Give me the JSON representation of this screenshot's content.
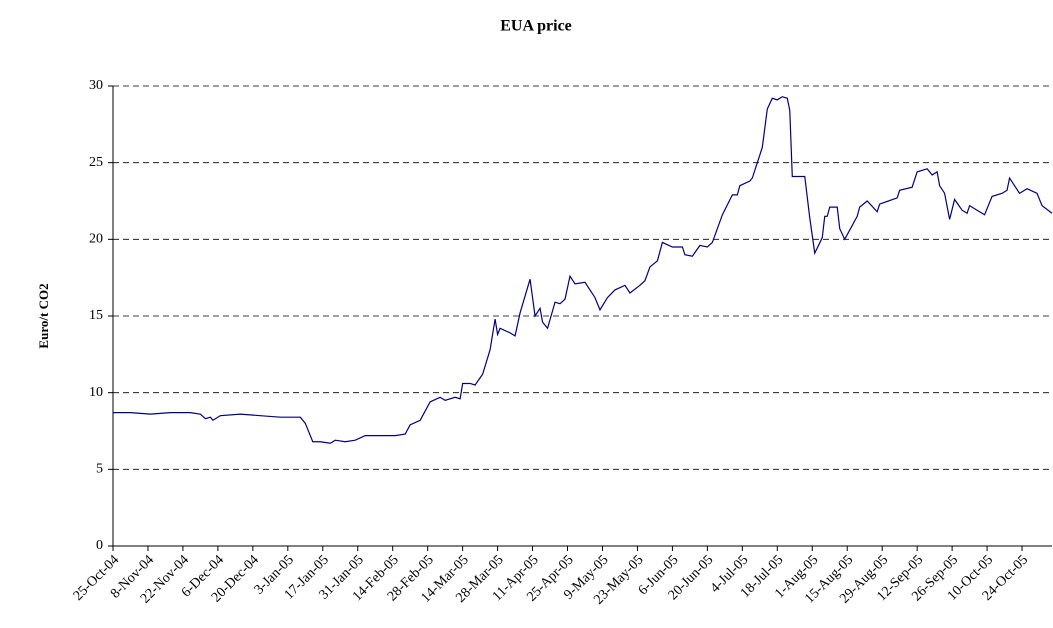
{
  "chart_data": {
    "type": "line",
    "title": "EUA price",
    "ylabel": "Euro/t CO2",
    "color": "#000080",
    "grid": true,
    "xlim": [
      "2004-10-25",
      "2005-11-05"
    ],
    "xticks": [
      {
        "value": "2004-10-25",
        "label": "25-Oct-04"
      },
      {
        "value": "2004-11-08",
        "label": "8-Nov-04"
      },
      {
        "value": "2004-11-22",
        "label": "22-Nov-04"
      },
      {
        "value": "2004-12-06",
        "label": "6-Dec-04"
      },
      {
        "value": "2004-12-20",
        "label": "20-Dec-04"
      },
      {
        "value": "2005-01-03",
        "label": "3-Jan-05"
      },
      {
        "value": "2005-01-17",
        "label": "17-Jan-05"
      },
      {
        "value": "2005-01-31",
        "label": "31-Jan-05"
      },
      {
        "value": "2005-02-14",
        "label": "14-Feb-05"
      },
      {
        "value": "2005-02-28",
        "label": "28-Feb-05"
      },
      {
        "value": "2005-03-14",
        "label": "14-Mar-05"
      },
      {
        "value": "2005-03-28",
        "label": "28-Mar-05"
      },
      {
        "value": "2005-04-11",
        "label": "11-Apr-05"
      },
      {
        "value": "2005-04-25",
        "label": "25-Apr-05"
      },
      {
        "value": "2005-05-09",
        "label": "9-May-05"
      },
      {
        "value": "2005-05-23",
        "label": "23-May-05"
      },
      {
        "value": "2005-06-06",
        "label": "6-Jun-05"
      },
      {
        "value": "2005-06-20",
        "label": "20-Jun-05"
      },
      {
        "value": "2005-07-04",
        "label": "4-Jul-05"
      },
      {
        "value": "2005-07-18",
        "label": "18-Jul-05"
      },
      {
        "value": "2005-08-01",
        "label": "1-Aug-05"
      },
      {
        "value": "2005-08-15",
        "label": "15-Aug-05"
      },
      {
        "value": "2005-08-29",
        "label": "29-Aug-05"
      },
      {
        "value": "2005-09-12",
        "label": "12-Sep-05"
      },
      {
        "value": "2005-09-26",
        "label": "26-Sep-05"
      },
      {
        "value": "2005-10-10",
        "label": "10-Oct-05"
      },
      {
        "value": "2005-10-24",
        "label": "24-Oct-05"
      }
    ],
    "ylim": [
      0,
      30
    ],
    "yticks": [
      0,
      5,
      10,
      15,
      20,
      25,
      30
    ],
    "x": [
      "2004-10-25",
      "2004-10-28",
      "2004-11-01",
      "2004-11-09",
      "2004-11-17",
      "2004-11-25",
      "2004-11-29",
      "2004-12-01",
      "2004-12-03",
      "2004-12-04",
      "2004-12-07",
      "2004-12-15",
      "2004-12-23",
      "2004-12-31",
      "2005-01-08",
      "2005-01-10",
      "2005-01-13",
      "2005-01-16",
      "2005-01-20",
      "2005-01-22",
      "2005-01-26",
      "2005-01-30",
      "2005-02-03",
      "2005-02-09",
      "2005-02-15",
      "2005-02-19",
      "2005-02-21",
      "2005-02-25",
      "2005-02-27",
      "2005-03-01",
      "2005-03-05",
      "2005-03-07",
      "2005-03-11",
      "2005-03-13",
      "2005-03-14",
      "2005-03-17",
      "2005-03-19",
      "2005-03-22",
      "2005-03-25",
      "2005-03-27",
      "2005-03-28",
      "2005-03-29",
      "2005-04-02",
      "2005-04-04",
      "2005-04-06",
      "2005-04-10",
      "2005-04-12",
      "2005-04-14",
      "2005-04-15",
      "2005-04-17",
      "2005-04-20",
      "2005-04-22",
      "2005-04-24",
      "2005-04-26",
      "2005-04-28",
      "2005-05-02",
      "2005-05-04",
      "2005-05-06",
      "2005-05-08",
      "2005-05-11",
      "2005-05-14",
      "2005-05-18",
      "2005-05-20",
      "2005-05-24",
      "2005-05-26",
      "2005-05-28",
      "2005-05-31",
      "2005-06-02",
      "2005-06-06",
      "2005-06-10",
      "2005-06-11",
      "2005-06-14",
      "2005-06-17",
      "2005-06-20",
      "2005-06-22",
      "2005-06-26",
      "2005-06-30",
      "2005-07-02",
      "2005-07-03",
      "2005-07-07",
      "2005-07-08",
      "2005-07-12",
      "2005-07-14",
      "2005-07-16",
      "2005-07-18",
      "2005-07-20",
      "2005-07-22",
      "2005-07-23",
      "2005-07-24",
      "2005-07-29",
      "2005-07-31",
      "2005-08-02",
      "2005-08-05",
      "2005-08-06",
      "2005-08-07",
      "2005-08-08",
      "2005-08-11",
      "2005-08-12",
      "2005-08-14",
      "2005-08-19",
      "2005-08-20",
      "2005-08-23",
      "2005-08-27",
      "2005-08-28",
      "2005-09-04",
      "2005-09-05",
      "2005-09-10",
      "2005-09-12",
      "2005-09-16",
      "2005-09-18",
      "2005-09-20",
      "2005-09-21",
      "2005-09-23",
      "2005-09-25",
      "2005-09-27",
      "2005-09-30",
      "2005-10-02",
      "2005-10-03",
      "2005-10-06",
      "2005-10-09",
      "2005-10-12",
      "2005-10-16",
      "2005-10-18",
      "2005-10-19",
      "2005-10-23",
      "2005-10-26",
      "2005-10-30",
      "2005-11-01",
      "2005-11-05"
    ],
    "values": [
      8.7,
      8.7,
      8.7,
      8.6,
      8.7,
      8.7,
      8.6,
      8.3,
      8.4,
      8.2,
      8.5,
      8.6,
      8.5,
      8.4,
      8.4,
      8.0,
      6.8,
      6.8,
      6.7,
      6.9,
      6.8,
      6.9,
      7.2,
      7.2,
      7.2,
      7.3,
      7.9,
      8.2,
      8.8,
      9.4,
      9.7,
      9.5,
      9.7,
      9.6,
      10.6,
      10.6,
      10.5,
      11.2,
      12.8,
      14.8,
      13.8,
      14.2,
      13.9,
      13.7,
      15.2,
      17.4,
      15.0,
      15.5,
      14.6,
      14.2,
      15.9,
      15.8,
      16.1,
      17.6,
      17.1,
      17.2,
      16.7,
      16.2,
      15.4,
      16.2,
      16.7,
      17.0,
      16.5,
      17.0,
      17.3,
      18.2,
      18.6,
      19.8,
      19.5,
      19.5,
      19.0,
      18.9,
      19.6,
      19.5,
      19.8,
      21.6,
      22.9,
      22.9,
      23.5,
      23.8,
      24.0,
      26.0,
      28.5,
      29.2,
      29.1,
      29.3,
      29.2,
      28.4,
      24.1,
      24.1,
      21.4,
      19.1,
      20.1,
      21.5,
      21.5,
      22.1,
      22.1,
      20.7,
      20.0,
      21.5,
      22.1,
      22.5,
      21.8,
      22.3,
      22.7,
      23.2,
      23.4,
      24.4,
      24.6,
      24.2,
      24.4,
      23.5,
      23.0,
      21.3,
      22.6,
      21.9,
      21.7,
      22.2,
      21.9,
      21.6,
      22.8,
      23.0,
      23.2,
      24.0,
      23.0,
      23.3,
      23.0,
      22.2,
      21.7
    ]
  }
}
